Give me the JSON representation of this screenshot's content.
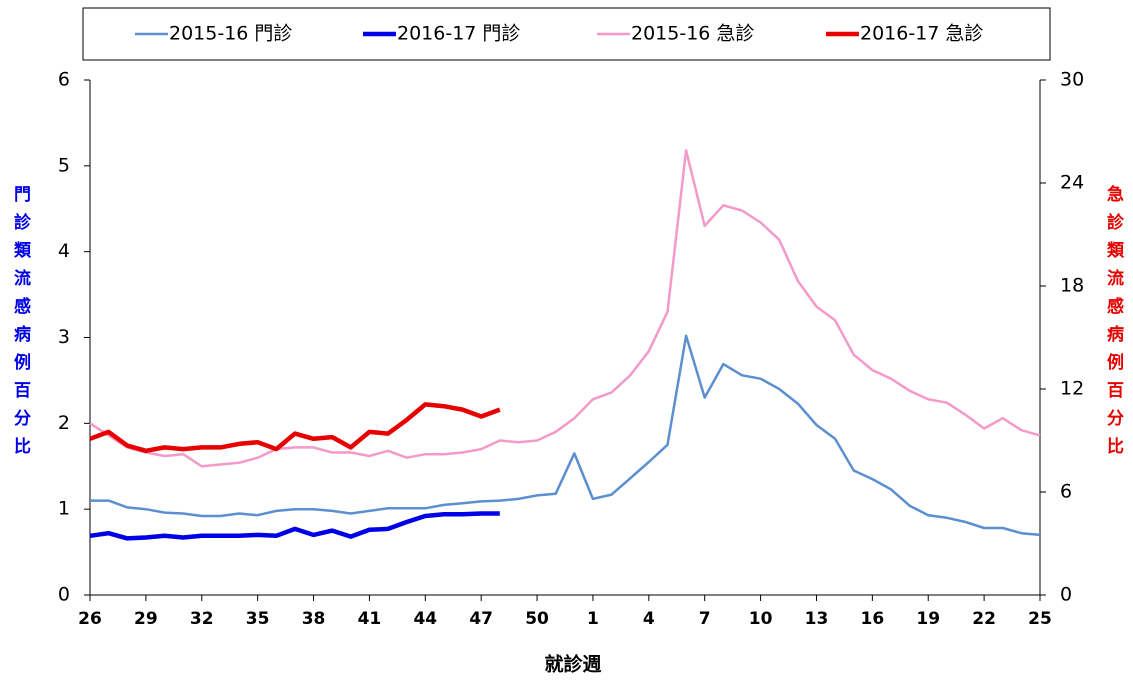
{
  "chart_data": {
    "type": "line",
    "x_label": "就診週",
    "y_label": "門診類流感病例百分比",
    "y2_label": "急診類流感病例百分比",
    "categories": [
      "26",
      null,
      null,
      "29",
      null,
      null,
      "32",
      null,
      null,
      "35",
      null,
      null,
      "38",
      null,
      null,
      "41",
      null,
      null,
      "44",
      null,
      null,
      "47",
      null,
      null,
      "50",
      null,
      null,
      "1",
      null,
      null,
      "4",
      null,
      null,
      "7",
      null,
      null,
      "10",
      null,
      null,
      "13",
      null,
      null,
      "16",
      null,
      null,
      "19",
      null,
      null,
      "22",
      null,
      null,
      "25"
    ],
    "ylim": [
      0,
      6
    ],
    "yticks": [
      0,
      1,
      2,
      3,
      4,
      5,
      6
    ],
    "y2lim": [
      0,
      30
    ],
    "y2ticks": [
      0,
      6,
      12,
      18,
      24,
      30
    ],
    "legend": "top",
    "series": [
      {
        "name": "2015-16 門診",
        "color": "#5b8fd0",
        "width": 2.5,
        "values": [
          1.1,
          1.1,
          1.02,
          1.0,
          0.96,
          0.95,
          0.92,
          0.92,
          0.95,
          0.93,
          0.98,
          1.0,
          1.0,
          0.98,
          0.95,
          0.98,
          1.01,
          1.01,
          1.01,
          1.05,
          1.07,
          1.09,
          1.1,
          1.12,
          1.16,
          1.18,
          1.65,
          1.12,
          1.17,
          1.36,
          1.55,
          1.75,
          3.02,
          2.3,
          2.69,
          2.56,
          2.52,
          2.4,
          2.23,
          1.98,
          1.82,
          1.45,
          1.35,
          1.23,
          1.04,
          0.93,
          0.9,
          0.85,
          0.78,
          0.78,
          0.72,
          0.7
        ]
      },
      {
        "name": "2016-17 門診",
        "color": "#0000e6",
        "width": 4.5,
        "values": [
          0.69,
          0.72,
          0.66,
          0.67,
          0.69,
          0.67,
          0.69,
          0.69,
          0.69,
          0.7,
          0.69,
          0.77,
          0.7,
          0.75,
          0.68,
          0.76,
          0.77,
          0.85,
          0.92,
          0.94,
          0.94,
          0.95,
          0.95,
          null,
          null,
          null,
          null,
          null,
          null,
          null,
          null,
          null,
          null,
          null,
          null,
          null,
          null,
          null,
          null,
          null,
          null,
          null,
          null,
          null,
          null,
          null,
          null,
          null,
          null,
          null,
          null,
          null
        ]
      },
      {
        "name": "2015-16 急診",
        "color": "#f49ac8",
        "width": 2.5,
        "axis": "y2",
        "values": [
          10.0,
          9.3,
          8.6,
          8.3,
          8.1,
          8.2,
          7.5,
          7.6,
          7.7,
          8.0,
          8.5,
          8.6,
          8.6,
          8.3,
          8.3,
          8.1,
          8.4,
          8.0,
          8.2,
          8.2,
          8.3,
          8.5,
          9.0,
          8.9,
          9.0,
          9.5,
          10.3,
          11.4,
          11.8,
          12.8,
          14.2,
          16.5,
          25.9,
          21.5,
          22.7,
          22.4,
          21.7,
          20.7,
          18.3,
          16.8,
          16.0,
          14.0,
          13.1,
          12.6,
          11.9,
          11.4,
          11.2,
          10.5,
          9.7,
          10.3,
          9.6,
          9.3
        ]
      },
      {
        "name": "2016-17 急診",
        "color": "#e60000",
        "width": 4.5,
        "axis": "y2",
        "values": [
          9.1,
          9.5,
          8.7,
          8.4,
          8.6,
          8.5,
          8.6,
          8.6,
          8.8,
          8.9,
          8.5,
          9.4,
          9.1,
          9.2,
          8.6,
          9.5,
          9.4,
          10.2,
          11.1,
          11.0,
          10.8,
          10.4,
          10.8,
          null,
          null,
          null,
          null,
          null,
          null,
          null,
          null,
          null,
          null,
          null,
          null,
          null,
          null,
          null,
          null,
          null,
          null,
          null,
          null,
          null,
          null,
          null,
          null,
          null,
          null,
          null,
          null,
          null
        ]
      }
    ]
  }
}
